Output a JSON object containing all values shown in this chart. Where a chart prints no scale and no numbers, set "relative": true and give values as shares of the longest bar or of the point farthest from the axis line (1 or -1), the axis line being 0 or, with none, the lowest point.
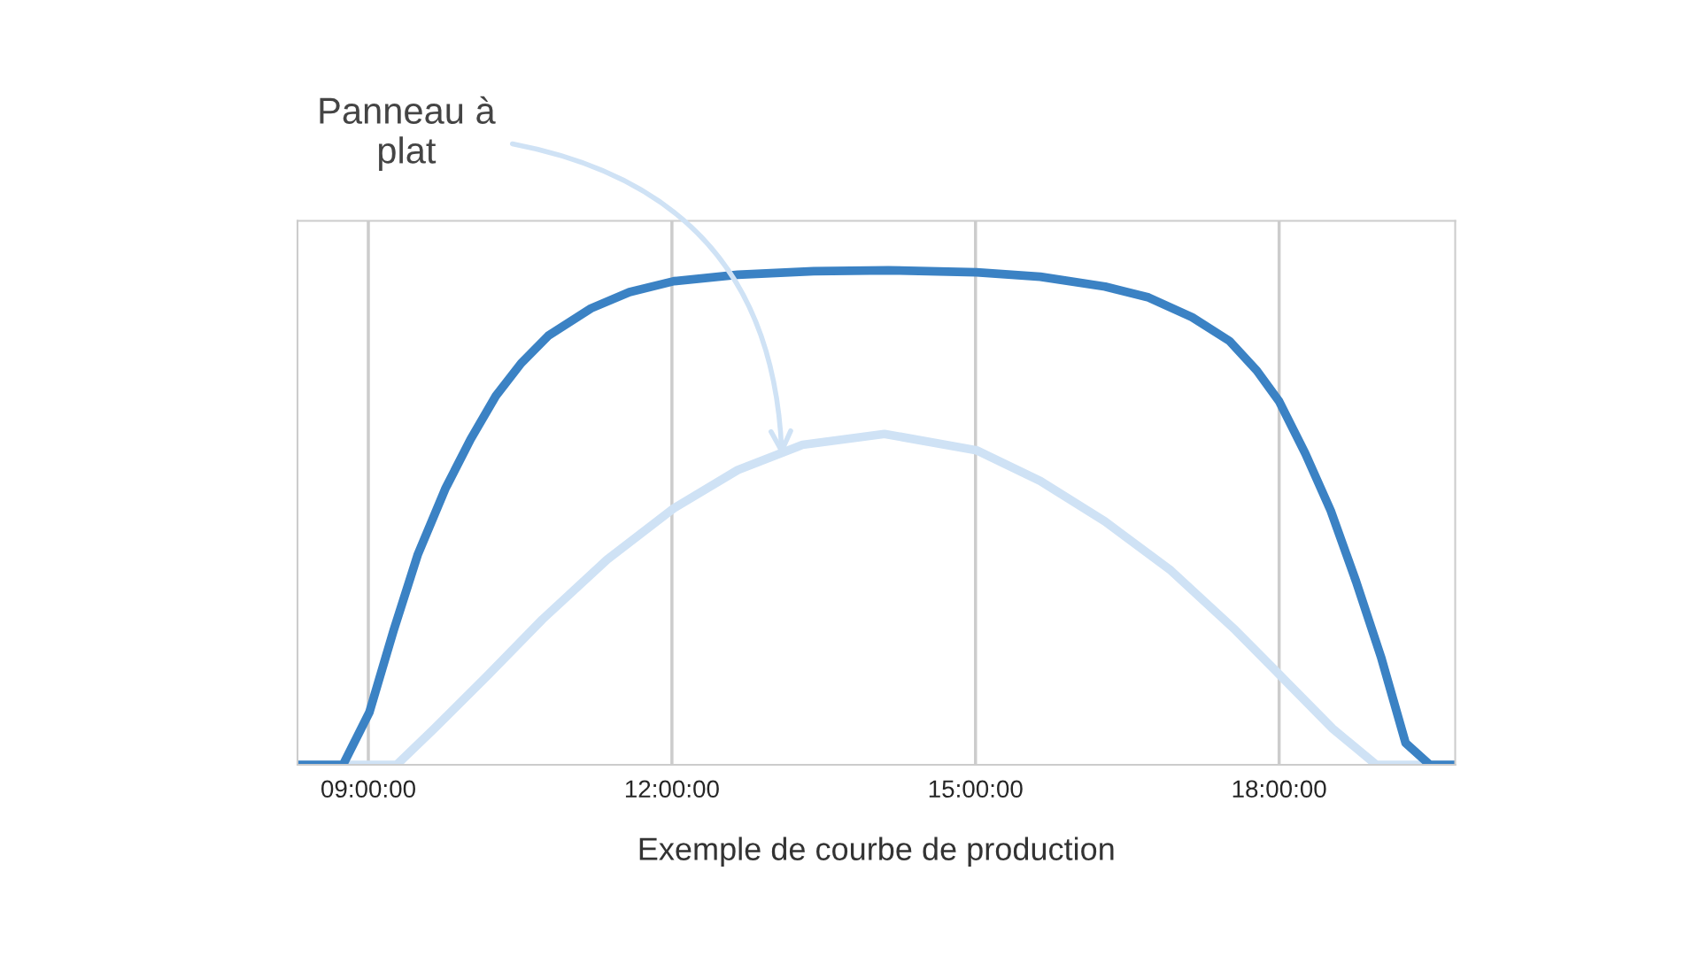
{
  "chart_data": {
    "type": "line",
    "relative": true,
    "xlabel": "Exemple de courbe de production",
    "xlim": [
      8.3,
      19.74
    ],
    "xticks": [
      {
        "value": 9,
        "label": "09:00:00"
      },
      {
        "value": 12,
        "label": "12:00:00"
      },
      {
        "value": 15,
        "label": "15:00:00"
      },
      {
        "value": 18,
        "label": "18:00:00"
      }
    ],
    "tick_labels": "x",
    "grid": "x",
    "marker": "none",
    "line_style": "solid",
    "annotations": [
      "Panneau à\nplat"
    ],
    "series": [
      {
        "color": "#3b82c4",
        "x": [
          8.3,
          8.75,
          9.01,
          9.25,
          9.49,
          9.76,
          10.01,
          10.26,
          10.51,
          10.78,
          11.2,
          11.58,
          12.02,
          12.65,
          13.4,
          14.14,
          15.01,
          15.64,
          16.28,
          16.71,
          17.14,
          17.51,
          17.78,
          18.0,
          18.26,
          18.51,
          18.76,
          19.01,
          19.25,
          19.49,
          19.74
        ],
        "values": [
          0,
          0,
          0.106,
          0.272,
          0.426,
          0.558,
          0.658,
          0.746,
          0.812,
          0.868,
          0.923,
          0.956,
          0.978,
          0.991,
          0.998,
          1.0,
          0.996,
          0.987,
          0.967,
          0.945,
          0.905,
          0.857,
          0.797,
          0.735,
          0.629,
          0.514,
          0.371,
          0.216,
          0.044,
          0,
          0
        ]
      },
      {
        "color": "#cfe2f5",
        "x": [
          8.3,
          9.28,
          9.65,
          10.19,
          10.72,
          11.36,
          12.02,
          12.65,
          13.29,
          14.1,
          15.01,
          15.64,
          16.28,
          16.93,
          17.57,
          18.0,
          18.53,
          18.96,
          19.74
        ],
        "values": [
          0,
          0,
          0.073,
          0.183,
          0.294,
          0.415,
          0.519,
          0.596,
          0.647,
          0.669,
          0.636,
          0.574,
          0.492,
          0.393,
          0.272,
          0.183,
          0.073,
          0,
          0
        ]
      }
    ]
  }
}
